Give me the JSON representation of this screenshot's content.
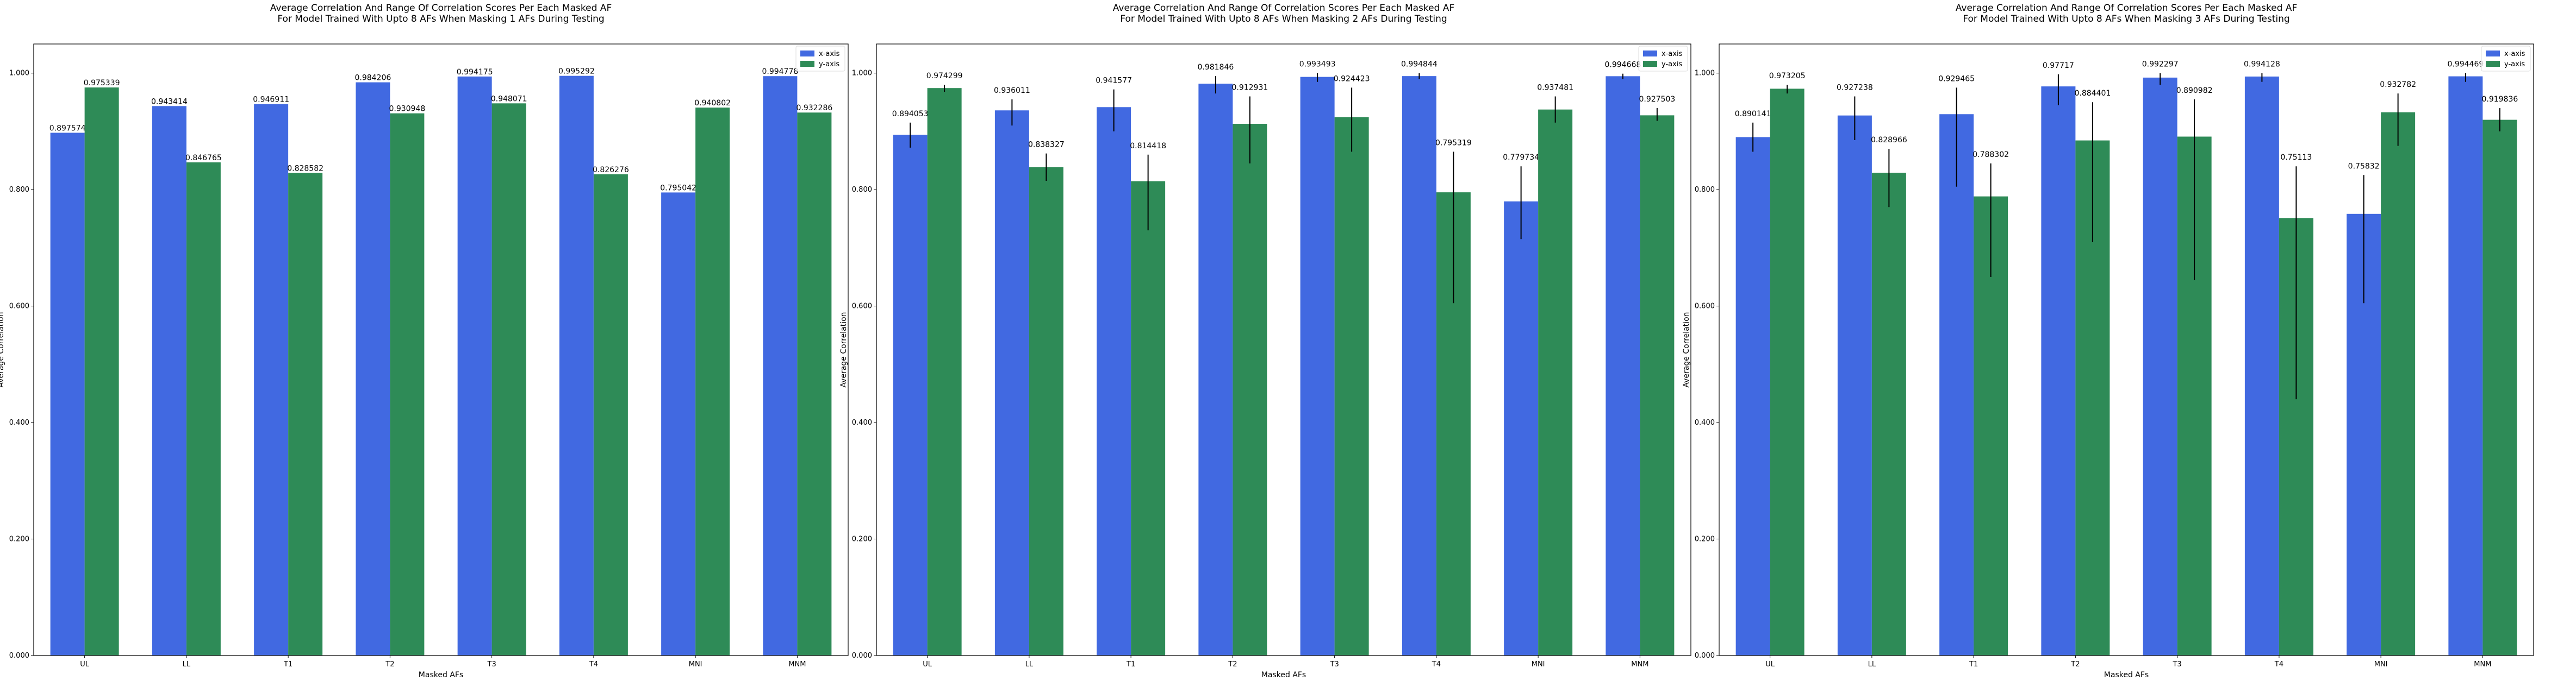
{
  "chart_data": [
    {
      "type": "bar",
      "title": [
        "Average Correlation And Range Of Correlation Scores Per Each Masked AF",
        "For Model Trained With Upto 8 AFs When Masking 1 AFs During Testing"
      ],
      "xlabel": "Masked AFs",
      "ylabel": "Average Correlation",
      "ylim": [
        0,
        1.05
      ],
      "yticks": [
        "0.000",
        "0.200",
        "0.400",
        "0.600",
        "0.800",
        "1.000"
      ],
      "ytick_values": [
        0,
        0.2,
        0.4,
        0.6,
        0.8,
        1.0
      ],
      "legend_position": "top-right",
      "categories": [
        "UL",
        "LL",
        "T1",
        "T2",
        "T3",
        "T4",
        "MNI",
        "MNM"
      ],
      "series": [
        {
          "name": "x-axis",
          "color": "#4169e1",
          "values": [
            0.897574,
            0.943414,
            0.946911,
            0.984206,
            0.994175,
            0.995292,
            0.795042,
            0.994778
          ],
          "labels": [
            "0.897574",
            "0.943414",
            "0.946911",
            "0.984206",
            "0.994175",
            "0.995292",
            "0.795042",
            "0.994778"
          ],
          "err_low": [
            null,
            null,
            null,
            null,
            null,
            null,
            null,
            null
          ],
          "err_high": [
            null,
            null,
            null,
            null,
            null,
            null,
            null,
            null
          ]
        },
        {
          "name": "y-axis",
          "color": "#2e8b57",
          "values": [
            0.975339,
            0.846765,
            0.828582,
            0.930948,
            0.948071,
            0.826276,
            0.940802,
            0.932286
          ],
          "labels": [
            "0.975339",
            "0.846765",
            "0.828582",
            "0.930948",
            "0.948071",
            "0.826276",
            "0.940802",
            "0.932286"
          ],
          "err_low": [
            null,
            null,
            null,
            null,
            null,
            null,
            null,
            null
          ],
          "err_high": [
            null,
            null,
            null,
            null,
            null,
            null,
            null,
            null
          ]
        }
      ]
    },
    {
      "type": "bar",
      "title": [
        "Average Correlation And Range Of Correlation Scores Per Each Masked AF",
        "For Model Trained With Upto 8 AFs When Masking 2 AFs During Testing"
      ],
      "xlabel": "Masked AFs",
      "ylabel": "Average Correlation",
      "ylim": [
        0,
        1.05
      ],
      "yticks": [
        "0.000",
        "0.200",
        "0.400",
        "0.600",
        "0.800",
        "1.000"
      ],
      "ytick_values": [
        0,
        0.2,
        0.4,
        0.6,
        0.8,
        1.0
      ],
      "legend_position": "top-right",
      "categories": [
        "UL",
        "LL",
        "T1",
        "T2",
        "T3",
        "T4",
        "MNI",
        "MNM"
      ],
      "series": [
        {
          "name": "x-axis",
          "color": "#4169e1",
          "values": [
            0.894053,
            0.936011,
            0.941577,
            0.981846,
            0.993493,
            0.994844,
            0.779734,
            0.994668
          ],
          "labels": [
            "0.894053",
            "0.936011",
            "0.941577",
            "0.981846",
            "0.993493",
            "0.994844",
            "0.779734",
            "0.994668"
          ],
          "err_low": [
            0.872,
            0.91,
            0.9,
            0.965,
            0.985,
            0.99,
            0.715,
            0.99
          ],
          "err_high": [
            0.915,
            0.955,
            0.972,
            0.995,
            1.0,
            1.0,
            0.84,
            0.999
          ]
        },
        {
          "name": "y-axis",
          "color": "#2e8b57",
          "values": [
            0.974299,
            0.838327,
            0.814418,
            0.912931,
            0.924423,
            0.795319,
            0.937481,
            0.927503
          ],
          "labels": [
            "0.974299",
            "0.838327",
            "0.814418",
            "0.912931",
            "0.924423",
            "0.795319",
            "0.937481",
            "0.927503"
          ],
          "err_low": [
            0.968,
            0.815,
            0.73,
            0.845,
            0.865,
            0.605,
            0.915,
            0.918
          ],
          "err_high": [
            0.98,
            0.862,
            0.86,
            0.96,
            0.975,
            0.865,
            0.96,
            0.94
          ]
        }
      ]
    },
    {
      "type": "bar",
      "title": [
        "Average Correlation And Range Of Correlation Scores Per Each Masked AF",
        "For Model Trained With Upto 8 AFs When Masking 3 AFs During Testing"
      ],
      "xlabel": "Masked AFs",
      "ylabel": "Average Correlation",
      "ylim": [
        0,
        1.05
      ],
      "yticks": [
        "0.000",
        "0.200",
        "0.400",
        "0.600",
        "0.800",
        "1.000"
      ],
      "ytick_values": [
        0,
        0.2,
        0.4,
        0.6,
        0.8,
        1.0
      ],
      "legend_position": "top-right",
      "categories": [
        "UL",
        "LL",
        "T1",
        "T2",
        "T3",
        "T4",
        "MNI",
        "MNM"
      ],
      "series": [
        {
          "name": "x-axis",
          "color": "#4169e1",
          "values": [
            0.890141,
            0.927238,
            0.929465,
            0.97717,
            0.992297,
            0.994128,
            0.75832,
            0.994469
          ],
          "labels": [
            "0.890141",
            "0.927238",
            "0.929465",
            "0.97717",
            "0.992297",
            "0.994128",
            "0.75832",
            "0.994469"
          ],
          "err_low": [
            0.865,
            0.885,
            0.805,
            0.945,
            0.98,
            0.985,
            0.605,
            0.985
          ],
          "err_high": [
            0.915,
            0.96,
            0.975,
            0.998,
            1.0,
            1.0,
            0.825,
            1.0
          ]
        },
        {
          "name": "y-axis",
          "color": "#2e8b57",
          "values": [
            0.973205,
            0.828966,
            0.788302,
            0.884401,
            0.890982,
            0.75113,
            0.932782,
            0.919836
          ],
          "labels": [
            "0.973205",
            "0.828966",
            "0.788302",
            "0.884401",
            "0.890982",
            "0.75113",
            "0.932782",
            "0.919836"
          ],
          "err_low": [
            0.965,
            0.77,
            0.65,
            0.71,
            0.645,
            0.44,
            0.875,
            0.9
          ],
          "err_high": [
            0.98,
            0.87,
            0.845,
            0.95,
            0.955,
            0.84,
            0.965,
            0.94
          ]
        }
      ]
    }
  ]
}
